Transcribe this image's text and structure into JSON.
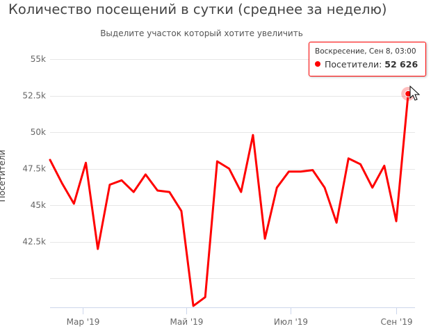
{
  "title": "Количество посещений в сутки (среднее за неделю)",
  "subtitle": "Выделите участок который хотите увеличить",
  "colors": {
    "series": "#ff0000",
    "grid": "#e6e6e6",
    "axis": "#ccd6eb"
  },
  "tooltip": {
    "date": "Воскресение, Сен 8, 03:00",
    "series_label": "Посетители:",
    "value": "52 626"
  },
  "chart_data": {
    "type": "line",
    "title": "Количество посещений в сутки (среднее за неделю)",
    "subtitle": "Выделите участок который хотите увеличить",
    "ylabel": "Посетители",
    "ylim": [
      38000,
      56000
    ],
    "y_ticks": [
      {
        "value": 42500,
        "label": "42.5k"
      },
      {
        "value": 45000,
        "label": "45k"
      },
      {
        "value": 47500,
        "label": "47.5k"
      },
      {
        "value": 50000,
        "label": "50k"
      },
      {
        "value": 52500,
        "label": "52.5k"
      },
      {
        "value": 55000,
        "label": "55k"
      }
    ],
    "grid_values": [
      40000,
      42500,
      45000,
      47500,
      50000,
      52500,
      55000
    ],
    "x_ticks": [
      {
        "date": "2019-03-01",
        "label": "Мар '19"
      },
      {
        "date": "2019-05-01",
        "label": "Май '19"
      },
      {
        "date": "2019-07-01",
        "label": "Июл '19"
      },
      {
        "date": "2019-09-01",
        "label": "Сен '19"
      }
    ],
    "xlim": [
      "2019-02-10",
      "2019-09-12"
    ],
    "grid": true,
    "legend": "none",
    "series": [
      {
        "name": "Посетители",
        "points": [
          {
            "x": "2019-02-10",
            "y": 48100
          },
          {
            "x": "2019-02-17",
            "y": 46500
          },
          {
            "x": "2019-02-24",
            "y": 45100
          },
          {
            "x": "2019-03-03",
            "y": 47900
          },
          {
            "x": "2019-03-10",
            "y": 42000
          },
          {
            "x": "2019-03-17",
            "y": 46400
          },
          {
            "x": "2019-03-24",
            "y": 46700
          },
          {
            "x": "2019-03-31",
            "y": 45900
          },
          {
            "x": "2019-04-07",
            "y": 47100
          },
          {
            "x": "2019-04-14",
            "y": 46000
          },
          {
            "x": "2019-04-21",
            "y": 45900
          },
          {
            "x": "2019-04-28",
            "y": 44600
          },
          {
            "x": "2019-05-05",
            "y": 38100
          },
          {
            "x": "2019-05-12",
            "y": 38700
          },
          {
            "x": "2019-05-19",
            "y": 48000
          },
          {
            "x": "2019-05-26",
            "y": 47500
          },
          {
            "x": "2019-06-02",
            "y": 45900
          },
          {
            "x": "2019-06-09",
            "y": 49800
          },
          {
            "x": "2019-06-16",
            "y": 42700
          },
          {
            "x": "2019-06-23",
            "y": 46200
          },
          {
            "x": "2019-06-30",
            "y": 47300
          },
          {
            "x": "2019-07-07",
            "y": 47300
          },
          {
            "x": "2019-07-14",
            "y": 47400
          },
          {
            "x": "2019-07-21",
            "y": 46200
          },
          {
            "x": "2019-07-28",
            "y": 43800
          },
          {
            "x": "2019-08-04",
            "y": 48200
          },
          {
            "x": "2019-08-11",
            "y": 47800
          },
          {
            "x": "2019-08-18",
            "y": 46200
          },
          {
            "x": "2019-08-25",
            "y": 47700
          },
          {
            "x": "2019-09-01",
            "y": 43900
          },
          {
            "x": "2019-09-08",
            "y": 52626
          }
        ]
      }
    ],
    "highlight": {
      "x": "2019-09-08",
      "y": 52626
    }
  }
}
